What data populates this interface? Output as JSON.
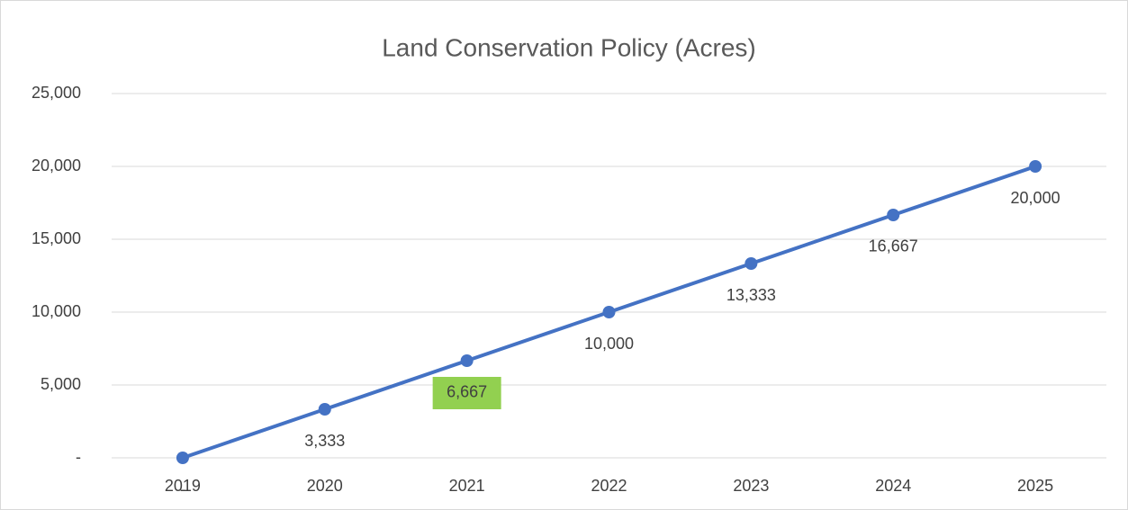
{
  "chart_data": {
    "type": "line",
    "title": "Land Conservation Policy (Acres)",
    "categories": [
      "2019",
      "2020",
      "2021",
      "2022",
      "2023",
      "2024",
      "2025"
    ],
    "series": [
      {
        "name": "Acres",
        "color": "#4472c4",
        "values": [
          0,
          3333,
          6667,
          10000,
          13333,
          16667,
          20000
        ],
        "value_labels": [
          "-",
          "3,333",
          "6,667",
          "10,000",
          "13,333",
          "16,667",
          "20,000"
        ]
      }
    ],
    "ylim": [
      0,
      25000
    ],
    "yticks": [
      {
        "value": 0,
        "label": "-"
      },
      {
        "value": 5000,
        "label": "5,000"
      },
      {
        "value": 10000,
        "label": "10,000"
      },
      {
        "value": 15000,
        "label": "15,000"
      },
      {
        "value": 20000,
        "label": "20,000"
      },
      {
        "value": 25000,
        "label": "25,000"
      }
    ],
    "grid": true,
    "highlight": {
      "index": 2,
      "color": "#92d050"
    }
  }
}
